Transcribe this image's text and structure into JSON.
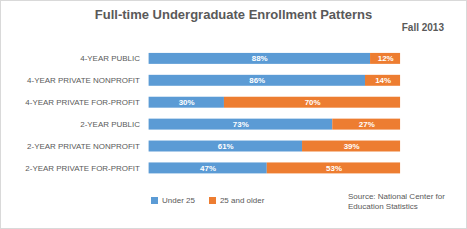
{
  "chart_data": {
    "type": "bar",
    "orientation": "horizontal",
    "stacked": true,
    "data_labels": true,
    "tick_labels": "y",
    "legend": "bottom",
    "title": "Full-time Undergraduate Enrollment Patterns",
    "subtitle": "Fall 2013",
    "caption": "Source: National Center for Education Statistics",
    "categories": [
      "4-YEAR PUBLIC",
      "4-YEAR PRIVATE NONPROFIT",
      "4-YEAR PRIVATE FOR-PROFIT",
      "2-YEAR PUBLIC",
      "2-YEAR PRIVATE NONPROFIT",
      "2-YEAR PRIVATE FOR-PROFIT"
    ],
    "xlim": [
      0,
      100
    ],
    "series": [
      {
        "name": "Under 25",
        "color": "#5b9bd5",
        "values": [
          88,
          86,
          30,
          73,
          61,
          47
        ],
        "value_labels": [
          "88%",
          "86%",
          "30%",
          "73%",
          "61%",
          "47%"
        ]
      },
      {
        "name": "25 and older",
        "color": "#ed7d31",
        "values": [
          12,
          14,
          70,
          27,
          39,
          53
        ],
        "value_labels": [
          "12%",
          "14%",
          "70%",
          "27%",
          "39%",
          "53%"
        ]
      }
    ]
  }
}
